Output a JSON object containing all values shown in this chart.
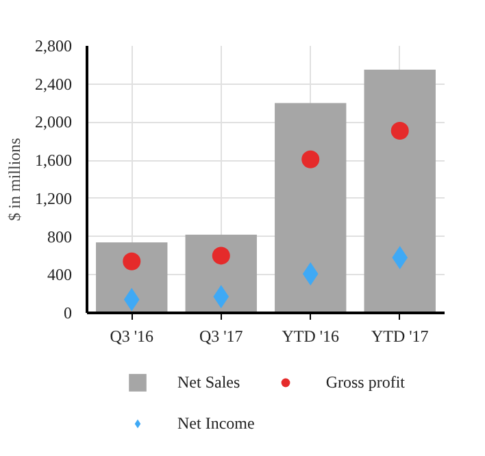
{
  "chart_data": {
    "type": "bar",
    "ylabel": "$ in millions",
    "categories": [
      "Q3 '16",
      "Q3 '17",
      "YTD '16",
      "YTD '17"
    ],
    "series": [
      {
        "name": "Net Sales",
        "color": "#a6a6a6",
        "values": [
          740,
          820,
          2200,
          2550
        ]
      },
      {
        "name": "Gross profit",
        "type": "scatter",
        "marker": "circle",
        "color": "#e52b2b",
        "values": [
          540,
          600,
          1610,
          1910
        ]
      },
      {
        "name": "Net Income",
        "type": "scatter",
        "marker": "diamond",
        "color": "#3fa9f5",
        "values": [
          140,
          170,
          410,
          580
        ]
      }
    ],
    "ylim": [
      0,
      2800
    ],
    "yticks": [
      {
        "value": 0,
        "label": "0"
      },
      {
        "value": 400,
        "label": "400"
      },
      {
        "value": 800,
        "label": "800"
      },
      {
        "value": 1200,
        "label": "1,200"
      },
      {
        "value": 1600,
        "label": "1,600"
      },
      {
        "value": 2000,
        "label": "2,000"
      },
      {
        "value": 2400,
        "label": "2,400"
      },
      {
        "value": 2800,
        "label": "2,800"
      }
    ],
    "grid": true,
    "legend": "bottom"
  }
}
